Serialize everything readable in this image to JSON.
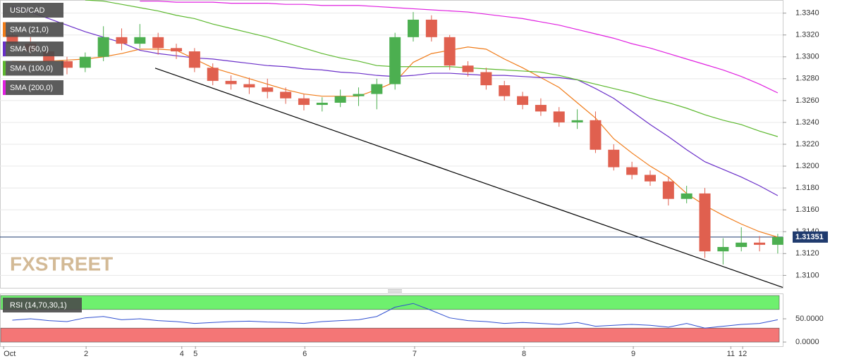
{
  "chart_data": [
    {
      "type": "candlestick",
      "symbol": "USD/CAD",
      "watermark": "FXSTREET",
      "up_color": "#4caf50",
      "down_color": "#e0604f",
      "grid": true,
      "xlim": [
        -0.7,
        171.1
      ],
      "ylim": [
        1.3088,
        1.3352
      ],
      "yticks": [
        {
          "value": 1.31,
          "label": "1.3100"
        },
        {
          "value": 1.312,
          "label": "1.3120"
        },
        {
          "value": 1.314,
          "label": "1.3140"
        },
        {
          "value": 1.316,
          "label": "1.3160"
        },
        {
          "value": 1.318,
          "label": "1.3180"
        },
        {
          "value": 1.32,
          "label": "1.3200"
        },
        {
          "value": 1.322,
          "label": "1.3220"
        },
        {
          "value": 1.324,
          "label": "1.3240"
        },
        {
          "value": 1.326,
          "label": "1.3260"
        },
        {
          "value": 1.328,
          "label": "1.3280"
        },
        {
          "value": 1.33,
          "label": "1.3300"
        },
        {
          "value": 1.332,
          "label": "1.3320"
        },
        {
          "value": 1.334,
          "label": "1.3340"
        }
      ],
      "last_price": 1.31351,
      "x": [
        2,
        6,
        10,
        14,
        18,
        22,
        26,
        30,
        34,
        38,
        42,
        46,
        50,
        54,
        58,
        62,
        66,
        70,
        74,
        78,
        82,
        86,
        90,
        94,
        98,
        102,
        106,
        110,
        114,
        118,
        122,
        126,
        130,
        134,
        138,
        142,
        146,
        150,
        154,
        158,
        162,
        166,
        170
      ],
      "open": [
        1.332,
        1.3312,
        1.3305,
        1.3296,
        1.329,
        1.33,
        1.3318,
        1.3312,
        1.3318,
        1.3308,
        1.3305,
        1.329,
        1.3278,
        1.3275,
        1.3272,
        1.3268,
        1.3262,
        1.3256,
        1.3258,
        1.3264,
        1.3266,
        1.3275,
        1.3318,
        1.3334,
        1.3318,
        1.3292,
        1.3286,
        1.3274,
        1.3264,
        1.3256,
        1.325,
        1.324,
        1.3242,
        1.3215,
        1.3199,
        1.3192,
        1.3186,
        1.317,
        1.3175,
        1.3122,
        1.3126,
        1.313,
        1.3128
      ],
      "high": [
        1.3324,
        1.3318,
        1.3309,
        1.33,
        1.3304,
        1.3328,
        1.3326,
        1.333,
        1.3322,
        1.3312,
        1.3308,
        1.3294,
        1.3283,
        1.3281,
        1.328,
        1.3272,
        1.3266,
        1.3263,
        1.327,
        1.3272,
        1.328,
        1.3322,
        1.3341,
        1.3338,
        1.332,
        1.3296,
        1.329,
        1.3278,
        1.3268,
        1.3262,
        1.3254,
        1.3252,
        1.325,
        1.322,
        1.3204,
        1.3196,
        1.319,
        1.3182,
        1.318,
        1.3134,
        1.3144,
        1.3136,
        1.3138
      ],
      "low": [
        1.3308,
        1.3301,
        1.3292,
        1.3284,
        1.3286,
        1.3296,
        1.3306,
        1.3308,
        1.3302,
        1.3298,
        1.3286,
        1.3274,
        1.327,
        1.3266,
        1.3262,
        1.3257,
        1.3251,
        1.325,
        1.3254,
        1.3255,
        1.3252,
        1.327,
        1.3314,
        1.3314,
        1.3288,
        1.3282,
        1.327,
        1.326,
        1.3252,
        1.3246,
        1.3236,
        1.3234,
        1.3212,
        1.3196,
        1.3188,
        1.3182,
        1.3164,
        1.3166,
        1.3116,
        1.311,
        1.3122,
        1.3122,
        1.312
      ],
      "close": [
        1.3312,
        1.3305,
        1.3296,
        1.329,
        1.33,
        1.3318,
        1.3312,
        1.3318,
        1.3308,
        1.3305,
        1.329,
        1.3278,
        1.3275,
        1.3272,
        1.3268,
        1.3262,
        1.3256,
        1.3258,
        1.3264,
        1.3266,
        1.3275,
        1.3318,
        1.3334,
        1.3318,
        1.3292,
        1.3286,
        1.3274,
        1.3264,
        1.3256,
        1.325,
        1.324,
        1.3242,
        1.3215,
        1.3199,
        1.3192,
        1.3186,
        1.317,
        1.3175,
        1.3122,
        1.3126,
        1.313,
        1.3128,
        1.31351
      ],
      "series": [
        {
          "name": "SMA (21,0)",
          "color": "#f07c1a",
          "values": [
            1.3296,
            1.3295,
            1.3296,
            1.3297,
            1.3298,
            1.33,
            1.3303,
            1.3307,
            1.3307,
            1.3306,
            1.3298,
            1.329,
            1.3285,
            1.328,
            1.3275,
            1.327,
            1.3266,
            1.3264,
            1.3264,
            1.3264,
            1.327,
            1.3277,
            1.3295,
            1.3303,
            1.3306,
            1.3309,
            1.3307,
            1.3298,
            1.329,
            1.3281,
            1.3272,
            1.3258,
            1.3244,
            1.3225,
            1.3212,
            1.32,
            1.319,
            1.3175,
            1.3164,
            1.3155,
            1.3147,
            1.314,
            1.3135
          ]
        },
        {
          "name": "SMA (50,0)",
          "color": "#6a2fc9",
          "values": [
            1.3346,
            1.3341,
            1.3335,
            1.3329,
            1.3323,
            1.3318,
            1.3313,
            1.3306,
            1.3303,
            1.3301,
            1.3299,
            1.3298,
            1.3296,
            1.3294,
            1.3292,
            1.3291,
            1.3289,
            1.3288,
            1.3286,
            1.3285,
            1.3283,
            1.3282,
            1.3283,
            1.3285,
            1.3285,
            1.3284,
            1.3283,
            1.3283,
            1.3282,
            1.3281,
            1.3281,
            1.3279,
            1.3271,
            1.3262,
            1.325,
            1.3238,
            1.3227,
            1.3215,
            1.3204,
            1.3197,
            1.319,
            1.3182,
            1.3173
          ]
        },
        {
          "name": "SMA (100,0)",
          "color": "#5cb82e",
          "values": [
            null,
            null,
            null,
            null,
            1.3352,
            1.3351,
            1.3348,
            1.3345,
            1.3342,
            1.3338,
            1.3335,
            1.333,
            1.3326,
            1.3322,
            1.3318,
            1.3313,
            1.3308,
            1.3303,
            1.3299,
            1.3296,
            1.3292,
            1.3291,
            1.3291,
            1.3291,
            1.3291,
            1.329,
            1.3289,
            1.3288,
            1.3287,
            1.3286,
            1.3283,
            1.3279,
            1.3275,
            1.3271,
            1.3267,
            1.3262,
            1.3258,
            1.3253,
            1.3247,
            1.3242,
            1.3238,
            1.3232,
            1.3227
          ]
        },
        {
          "name": "SMA (200,0)",
          "color": "#e020e0",
          "values": [
            null,
            null,
            null,
            null,
            null,
            null,
            null,
            1.3351,
            1.3351,
            1.335,
            1.335,
            1.335,
            1.3349,
            1.3349,
            1.3349,
            1.3348,
            1.3348,
            1.3347,
            1.3347,
            1.3347,
            1.3346,
            1.3345,
            1.3344,
            1.3343,
            1.3342,
            1.3341,
            1.3339,
            1.3337,
            1.3335,
            1.3332,
            1.3329,
            1.3325,
            1.3321,
            1.3317,
            1.3312,
            1.3308,
            1.3303,
            1.3298,
            1.3293,
            1.3288,
            1.3282,
            1.3275,
            1.3267
          ]
        }
      ],
      "trendline": {
        "color": "#000000",
        "x": [
          33.35,
          171.1
        ],
        "y": [
          1.32897,
          1.3089
        ]
      }
    },
    {
      "type": "line",
      "name": "RSI (14,70,30,1)",
      "color": "#2f4fd0",
      "xlim": [
        -0.7,
        171.1
      ],
      "ylim": [
        -9,
        103
      ],
      "upper_band": [
        70,
        100
      ],
      "lower_band": [
        0,
        30
      ],
      "upper_color": "#6ef06e",
      "lower_color": "#f47676",
      "yticks": [
        {
          "value": 0,
          "label": "0.0000"
        },
        {
          "value": 50,
          "label": "50.0000"
        }
      ],
      "xticks": [
        {
          "value": 0.1,
          "label": "Oct"
        },
        {
          "value": 18.2,
          "label": "2"
        },
        {
          "value": 39.2,
          "label": "4"
        },
        {
          "value": 42.2,
          "label": "5"
        },
        {
          "value": 66.2,
          "label": "6"
        },
        {
          "value": 90.3,
          "label": "7"
        },
        {
          "value": 114.3,
          "label": "8"
        },
        {
          "value": 138.3,
          "label": "9"
        },
        {
          "value": 159.7,
          "label": "11"
        },
        {
          "value": 162.3,
          "label": "12"
        }
      ],
      "x": [
        2,
        6,
        10,
        14,
        18,
        22,
        26,
        30,
        34,
        38,
        42,
        46,
        50,
        54,
        58,
        62,
        66,
        70,
        74,
        78,
        82,
        86,
        90,
        94,
        98,
        102,
        106,
        110,
        114,
        118,
        122,
        126,
        130,
        134,
        138,
        142,
        146,
        150,
        154,
        158,
        162,
        166,
        170
      ],
      "values": [
        47,
        50,
        46,
        44,
        52,
        55,
        48,
        50,
        46,
        44,
        40,
        42,
        44,
        45,
        43,
        42,
        40,
        44,
        46,
        48,
        55,
        75,
        83,
        68,
        52,
        46,
        44,
        40,
        42,
        40,
        38,
        42,
        34,
        36,
        38,
        36,
        32,
        40,
        30,
        34,
        38,
        40,
        48
      ]
    }
  ]
}
